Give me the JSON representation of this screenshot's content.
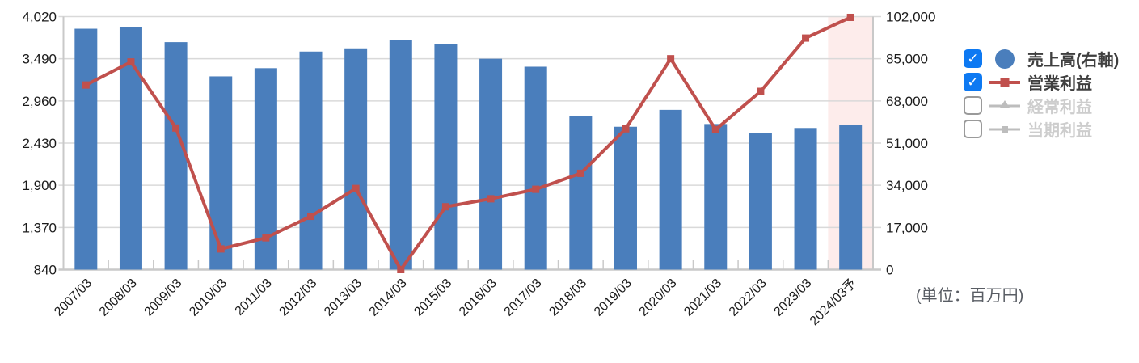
{
  "chart_data": {
    "type": "bar",
    "title": "",
    "categories": [
      "2007/03",
      "2008/03",
      "2009/03",
      "2010/03",
      "2011/03",
      "2012/03",
      "2013/03",
      "2014/03",
      "2015/03",
      "2016/03",
      "2017/03",
      "2018/03",
      "2019/03",
      "2020/03",
      "2021/03",
      "2022/03",
      "2023/03",
      "2024/03予"
    ],
    "series": [
      {
        "name": "売上高(右軸)",
        "type": "bar",
        "axis": "right",
        "color": "#4a7ebc",
        "marker": "circle",
        "visible": true,
        "values": [
          97100,
          97900,
          91700,
          77900,
          81200,
          87900,
          89200,
          92500,
          91000,
          85000,
          81800,
          62000,
          57600,
          64400,
          58700,
          55100,
          57100,
          58200
        ]
      },
      {
        "name": "営業利益",
        "type": "line",
        "axis": "left",
        "color": "#c0504d",
        "marker": "square",
        "visible": true,
        "values": [
          3160,
          3450,
          2620,
          1100,
          1240,
          1510,
          1860,
          840,
          1630,
          1730,
          1850,
          2050,
          2610,
          3490,
          2600,
          3080,
          3750,
          4010
        ]
      },
      {
        "name": "経常利益",
        "type": "line",
        "axis": "left",
        "color": "#bdbdbd",
        "marker": "triangle",
        "visible": false,
        "values": null
      },
      {
        "name": "当期利益",
        "type": "line",
        "axis": "left",
        "color": "#bdbdbd",
        "marker": "dash",
        "visible": false,
        "values": null
      }
    ],
    "left_axis": {
      "min": 840,
      "max": 4020,
      "tick_values": [
        4020,
        3490,
        2960,
        2430,
        1900,
        1370,
        840
      ],
      "tick_labels": [
        "4,020",
        "3,490",
        "2,960",
        "2,430",
        "1,900",
        "1,370",
        "840"
      ]
    },
    "right_axis": {
      "min": 0,
      "max": 102000,
      "tick_values": [
        102000,
        85000,
        68000,
        51000,
        34000,
        17000,
        0
      ],
      "tick_labels": [
        "102,000",
        "85,000",
        "68,000",
        "51,000",
        "34,000",
        "17,000",
        "0"
      ]
    },
    "forecast_band": {
      "category": "2024/03予",
      "color": "#fdeceb"
    },
    "grid": true,
    "legend_position": "right",
    "colors": {
      "gridline": "#d9d9d9",
      "axis": "#c9c9c9",
      "tick_text": "#1b1b1b"
    }
  },
  "legend": {
    "check_glyph": "✓"
  },
  "unit_label": "(単位：百万円)"
}
